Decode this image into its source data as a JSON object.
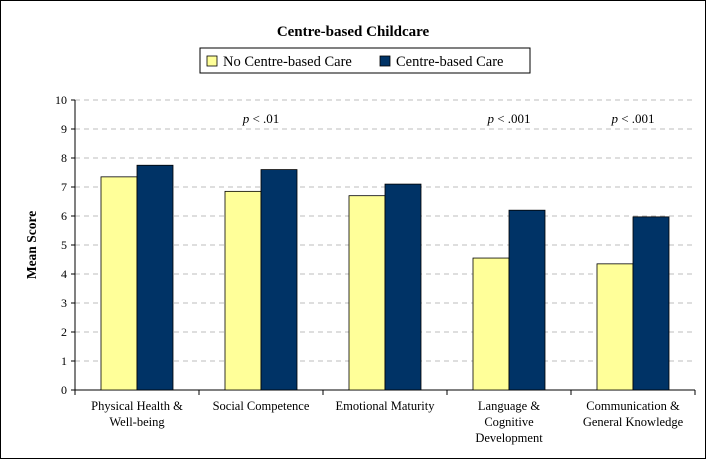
{
  "chart_data": {
    "type": "bar",
    "title": "Centre-based Childcare",
    "xlabel": "",
    "ylabel": "Mean Score",
    "ylim": [
      0,
      10
    ],
    "yticks": [
      0,
      1,
      2,
      3,
      4,
      5,
      6,
      7,
      8,
      9,
      10
    ],
    "grid": true,
    "legend_position": "top",
    "categories": [
      [
        "Physical Health &",
        "Well-being"
      ],
      [
        "Social Competence"
      ],
      [
        "Emotional Maturity"
      ],
      [
        "Language &",
        "Cognitive",
        "Development"
      ],
      [
        "Communication &",
        "General Knowledge"
      ]
    ],
    "series": [
      {
        "name": "No Centre-based Care",
        "color": "#ffff99",
        "values": [
          7.35,
          6.85,
          6.7,
          4.55,
          4.35
        ]
      },
      {
        "name": "Centre-based Care",
        "color": "#003366",
        "values": [
          7.75,
          7.6,
          7.1,
          6.2,
          5.97
        ]
      }
    ],
    "annotations": [
      {
        "category_index": 1,
        "italic": "p",
        "text": " < .01"
      },
      {
        "category_index": 3,
        "italic": "p",
        "text": " < .001"
      },
      {
        "category_index": 4,
        "italic": "p",
        "text": " < .001"
      }
    ]
  }
}
